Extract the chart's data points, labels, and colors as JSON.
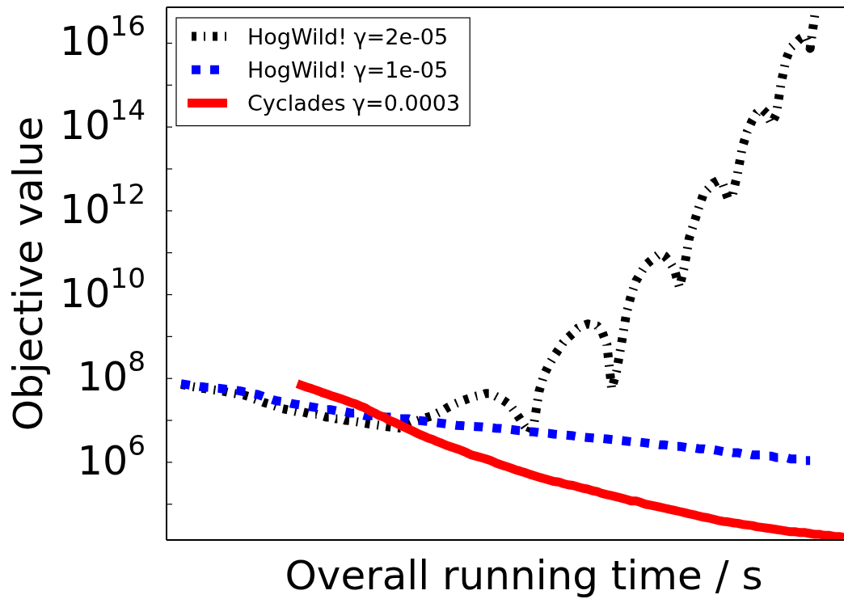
{
  "chart_data": {
    "type": "line",
    "xlabel": "Overall running time / s",
    "ylabel": "Objective value",
    "log": "y",
    "tick_labels": "y",
    "legend": "top left",
    "ylim": [
      14000.0,
      7.2e+16
    ],
    "yticks": [
      {
        "value": 100000.0,
        "label": null
      },
      {
        "value": 1000000.0,
        "label": "10$^{6}$"
      },
      {
        "value": 10000000.0,
        "label": null
      },
      {
        "value": 100000000.0,
        "label": "10$^{8}$"
      },
      {
        "value": 1000000000.0,
        "label": null
      },
      {
        "value": 10000000000.0,
        "label": "10$^{10}$"
      },
      {
        "value": 100000000000.0,
        "label": null
      },
      {
        "value": 1000000000000.0,
        "label": "10$^{12}$"
      },
      {
        "value": 10000000000000.0,
        "label": null
      },
      {
        "value": 100000000000000.0,
        "label": "10$^{14}$"
      },
      {
        "value": 1000000000000000.0,
        "label": null
      },
      {
        "value": 1e+16,
        "label": "10$^{16}$"
      }
    ],
    "categories": [
      null,
      null,
      null,
      null,
      null,
      null,
      null,
      null,
      null,
      null,
      null,
      null,
      null,
      null,
      null,
      null,
      null,
      null,
      null,
      null,
      null,
      null,
      null,
      null,
      null,
      null,
      null,
      null,
      null,
      null,
      null,
      null,
      null,
      null,
      null,
      null,
      null,
      null,
      null,
      null,
      null,
      null,
      null,
      null,
      null,
      null,
      null,
      null,
      null,
      null,
      null,
      null,
      null,
      null,
      null,
      null,
      null,
      null,
      null,
      null,
      null,
      null,
      null,
      null,
      null,
      null,
      null,
      null,
      null,
      null,
      null,
      null,
      null,
      null,
      null,
      null,
      null,
      null,
      null,
      null,
      null,
      null,
      null,
      null,
      null,
      null,
      null,
      null,
      null,
      null,
      null,
      null,
      null,
      null,
      null,
      null,
      null,
      null,
      null,
      null,
      null,
      null,
      null,
      null,
      null,
      null,
      null,
      null,
      null,
      null,
      null,
      null,
      null,
      null,
      null,
      null,
      null,
      null,
      null,
      null,
      null,
      null,
      null,
      null,
      null,
      null,
      null,
      null,
      null,
      null,
      null,
      null,
      null,
      null,
      null,
      null,
      null,
      null,
      null,
      null,
      null
    ],
    "series": [
      {
        "name": "HogWild! γ=2e-05",
        "color": "#000000",
        "line_style": "dashdot",
        "values": [
          null,
          null,
          null,
          72000000.0,
          69000000.0,
          65000000.0,
          62000000.0,
          59000000.0,
          57000000.0,
          55000000.0,
          53000000.0,
          51000000.0,
          49000000.0,
          46000000.0,
          44000000.0,
          42000000.0,
          40000000.0,
          37000000.0,
          33000000.0,
          30000000.0,
          27000000.0,
          25000000.0,
          23000000.0,
          21000000.0,
          19000000.0,
          18000000.0,
          17000000.0,
          16000000.0,
          16000000.0,
          15000000.0,
          14000000.0,
          14000000.0,
          13000000.0,
          12000000.0,
          12000000.0,
          11000000.0,
          11000000.0,
          10000000.0,
          9800000.0,
          9400000.0,
          9000000.0,
          8600000.0,
          8200000.0,
          7900000.0,
          7600000.0,
          7300000.0,
          7000000.0,
          6800000.0,
          6600000.0,
          7200000.0,
          8100000.0,
          9100000.0,
          10000000.0,
          11000000.0,
          12000000.0,
          13000000.0,
          15000000.0,
          17000000.0,
          20000000.0,
          23000000.0,
          26000000.0,
          29000000.0,
          32000000.0,
          35000000.0,
          38000000.0,
          40000000.0,
          44000000.0,
          44000000.0,
          38000000.0,
          33000000.0,
          28000000.0,
          23000000.0,
          16000000.0,
          11000000.0,
          7300000.0,
          5100000.0,
          9300000.0,
          50000000.0,
          120000000.0,
          210000000.0,
          330000000.0,
          490000000.0,
          730000000.0,
          950000000.0,
          1200000000.0,
          1600000000.0,
          1800000000.0,
          2000000000.0,
          1900000000.0,
          1800000000.0,
          1300000000.0,
          650000000.0,
          56000000.0,
          150000000.0,
          670000000.0,
          3400000000.0,
          9600000000.0,
          21000000000.0,
          33000000000.0,
          51000000000.0,
          64000000000.0,
          79000000000.0,
          97000000000.0,
          83000000000.0,
          60000000000.0,
          38000000000.0,
          15000000000.0,
          46000000000.0,
          220000000000.0,
          510000000000.0,
          1200000000000.0,
          2600000000000.0,
          3400000000000.0,
          4600000000000.0,
          5300000000000.0,
          4200000000000.0,
          2000000000000.0,
          2500000000000.0,
          7700000000000.0,
          33000000000000.0,
          78000000000000.0,
          140000000000000.0,
          220000000000000.0,
          270000000000000.0,
          210000000000000.0,
          120000000000000.0,
          200000000000000.0,
          1100000000000000.0,
          4000000000000000.0,
          7900000000000000.0,
          1e+16,
          1.3e+16,
          1.5e+16,
          7500000000000000.0,
          5.1e+16,
          null,
          null,
          null,
          null,
          null,
          null
        ]
      },
      {
        "name": "HogWild! γ=1e-05",
        "color": "#0000ff",
        "line_style": "dotted",
        "values": [
          null,
          null,
          null,
          75000000.0,
          72000000.0,
          69000000.0,
          67000000.0,
          64000000.0,
          62000000.0,
          61000000.0,
          59000000.0,
          58000000.0,
          56000000.0,
          54000000.0,
          53000000.0,
          51000000.0,
          48000000.0,
          46000000.0,
          43000000.0,
          41000000.0,
          37000000.0,
          34000000.0,
          31000000.0,
          29000000.0,
          28000000.0,
          27000000.0,
          25000000.0,
          24000000.0,
          23000000.0,
          22000000.0,
          21000000.0,
          20000000.0,
          19000000.0,
          18000000.0,
          18000000.0,
          17000000.0,
          17000000.0,
          16000000.0,
          15000000.0,
          15000000.0,
          14000000.0,
          13000000.0,
          13000000.0,
          13000000.0,
          13000000.0,
          12000000.0,
          12000000.0,
          12000000.0,
          11000000.0,
          11000000.0,
          11000000.0,
          10000000.0,
          10000000.0,
          9700000.0,
          9400000.0,
          9100000.0,
          8800000.0,
          8500000.0,
          8200000.0,
          7900000.0,
          7600000.0,
          7500000.0,
          7300000.0,
          7200000.0,
          7100000.0,
          7000000.0,
          6800000.0,
          6700000.0,
          6500000.0,
          6400000.0,
          6200000.0,
          6100000.0,
          5900000.0,
          5700000.0,
          5600000.0,
          5400000.0,
          5300000.0,
          5100000.0,
          5000000.0,
          4900000.0,
          4700000.0,
          4600000.0,
          4500000.0,
          4400000.0,
          4300000.0,
          4100000.0,
          4000000.0,
          3900000.0,
          3800000.0,
          3700000.0,
          3700000.0,
          3600000.0,
          3500000.0,
          3400000.0,
          3300000.0,
          3200000.0,
          3100000.0,
          3100000.0,
          3000000.0,
          2900000.0,
          2800000.0,
          2700000.0,
          2600000.0,
          2600000.0,
          2500000.0,
          2400000.0,
          2400000.0,
          2300000.0,
          2200000.0,
          2200000.0,
          2100000.0,
          2100000.0,
          2000000.0,
          2000000.0,
          1900000.0,
          1800000.0,
          1800000.0,
          1700000.0,
          1700000.0,
          1600000.0,
          1600000.0,
          1500000.0,
          1500000.0,
          1500000.0,
          1400000.0,
          1400000.0,
          1300000.0,
          1300000.0,
          1300000.0,
          1200000.0,
          1200000.0,
          1200000.0,
          1100000.0,
          1100000.0,
          null,
          null,
          null,
          null,
          null,
          null,
          null
        ]
      },
      {
        "name": "Cyclades γ=0.0003",
        "color": "#ff0000",
        "line_style": "solid",
        "values": [
          null,
          null,
          null,
          null,
          null,
          null,
          null,
          null,
          null,
          null,
          null,
          null,
          null,
          null,
          null,
          null,
          null,
          null,
          null,
          null,
          null,
          null,
          null,
          null,
          null,
          null,
          null,
          75000000.0,
          68000000.0,
          62000000.0,
          57000000.0,
          52000000.0,
          47000000.0,
          43000000.0,
          39000000.0,
          36000000.0,
          33000000.0,
          30000000.0,
          27000000.0,
          25000000.0,
          22000000.0,
          20000000.0,
          17000000.0,
          15000000.0,
          13000000.0,
          12000000.0,
          10000000.0,
          9100000.0,
          8000000.0,
          7000000.0,
          6200000.0,
          5500000.0,
          4800000.0,
          4300000.0,
          3800000.0,
          3500000.0,
          3100000.0,
          2800000.0,
          2500000.0,
          2300000.0,
          2100000.0,
          1900000.0,
          1700000.0,
          1500000.0,
          1400000.0,
          1300000.0,
          1200000.0,
          1100000.0,
          970000.0,
          880000.0,
          810000.0,
          740000.0,
          670000.0,
          620000.0,
          570000.0,
          520000.0,
          480000.0,
          440000.0,
          410000.0,
          380000.0,
          350000.0,
          340000.0,
          310000.0,
          290000.0,
          280000.0,
          260000.0,
          240000.0,
          230000.0,
          210000.0,
          200000.0,
          180000.0,
          170000.0,
          160000.0,
          150000.0,
          140000.0,
          130000.0,
          120000.0,
          120000.0,
          110000.0,
          100000.0,
          95000.0,
          90000.0,
          85000.0,
          80000.0,
          75000.0,
          71000.0,
          67000.0,
          63000.0,
          59000.0,
          56000.0,
          52000.0,
          49000.0,
          47000.0,
          44000.0,
          41000.0,
          39000.0,
          38000.0,
          36000.0,
          35000.0,
          33000.0,
          32000.0,
          31000.0,
          29000.0,
          28000.0,
          27000.0,
          26000.0,
          25000.0,
          24000.0,
          23000.0,
          22000.0,
          22000.0,
          21000.0,
          21000.0,
          20000.0,
          19000.0,
          19000.0,
          18000.0,
          18000.0,
          17000.0,
          17000.0,
          16000.0
        ]
      }
    ]
  }
}
